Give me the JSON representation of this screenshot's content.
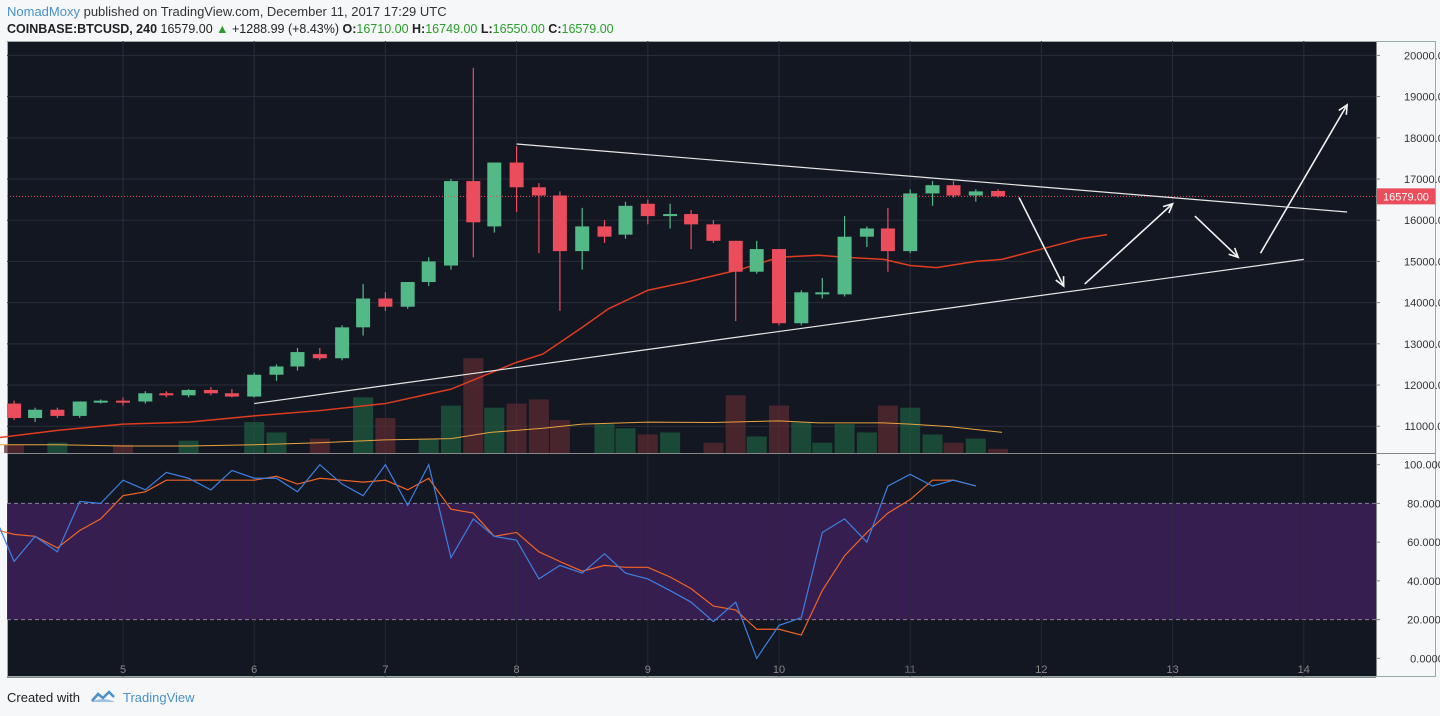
{
  "header": {
    "user": "NomadMoxy",
    "published_text": "published on TradingView.com, December 11, 2017 17:29 UTC",
    "symbol": "COINBASE:BTCUSD, 240",
    "last": "16579.00",
    "change": "+1288.99 (+8.43%)",
    "open_label": "O:",
    "open": "16710.00",
    "high_label": "H:",
    "high": "16749.00",
    "low_label": "L:",
    "low": "16550.00",
    "close_label": "C:",
    "close": "16579.00"
  },
  "footer": {
    "created_with": "Created with",
    "brand": "TradingView"
  },
  "colors": {
    "bg": "#131722",
    "up": "#53b987",
    "down": "#eb4d5c",
    "ema": "#e03c1e",
    "vol_ma": "#e8a33d",
    "k": "#3d7fe0",
    "d": "#f26522",
    "band": "#3b1f57",
    "price_line": "#eb4d5c"
  },
  "chart_data": [
    {
      "type": "candlestick",
      "x_label_days": [
        "5",
        "6",
        "7",
        "8",
        "9",
        "10",
        "11",
        "12",
        "13",
        "14"
      ],
      "x_range": [
        4.1,
        14.5
      ],
      "y_ticks": [
        "20000.00",
        "19000.00",
        "18000.00",
        "17000.00",
        "16000.00",
        "15000.00",
        "14000.00",
        "13000.00",
        "12000.00",
        "11000.00"
      ],
      "ylim": [
        10350,
        20350
      ],
      "last_price_label": "16579.00",
      "candles": [
        {
          "t": 4.0,
          "o": 11550,
          "h": 11650,
          "l": 11350,
          "c": 11400
        },
        {
          "t": 4.17,
          "o": 11550,
          "h": 11620,
          "l": 11150,
          "c": 11200
        },
        {
          "t": 4.33,
          "o": 11200,
          "h": 11450,
          "l": 11100,
          "c": 11400
        },
        {
          "t": 4.5,
          "o": 11400,
          "h": 11450,
          "l": 11200,
          "c": 11250
        },
        {
          "t": 4.67,
          "o": 11250,
          "h": 11600,
          "l": 11200,
          "c": 11600
        },
        {
          "t": 4.83,
          "o": 11600,
          "h": 11650,
          "l": 11550,
          "c": 11620
        },
        {
          "t": 5.0,
          "o": 11620,
          "h": 11700,
          "l": 11500,
          "c": 11600
        },
        {
          "t": 5.17,
          "o": 11600,
          "h": 11850,
          "l": 11550,
          "c": 11800
        },
        {
          "t": 5.33,
          "o": 11800,
          "h": 11850,
          "l": 11700,
          "c": 11750
        },
        {
          "t": 5.5,
          "o": 11750,
          "h": 11900,
          "l": 11700,
          "c": 11880
        },
        {
          "t": 5.67,
          "o": 11880,
          "h": 11950,
          "l": 11750,
          "c": 11800
        },
        {
          "t": 5.83,
          "o": 11800,
          "h": 11900,
          "l": 11700,
          "c": 11720
        },
        {
          "t": 6.0,
          "o": 11720,
          "h": 12300,
          "l": 11700,
          "c": 12250
        },
        {
          "t": 6.17,
          "o": 12250,
          "h": 12500,
          "l": 12100,
          "c": 12450
        },
        {
          "t": 6.33,
          "o": 12450,
          "h": 12900,
          "l": 12350,
          "c": 12800
        },
        {
          "t": 6.5,
          "o": 12750,
          "h": 12900,
          "l": 12600,
          "c": 12650
        },
        {
          "t": 6.67,
          "o": 12650,
          "h": 13450,
          "l": 12600,
          "c": 13400
        },
        {
          "t": 6.83,
          "o": 13400,
          "h": 14450,
          "l": 13200,
          "c": 14100
        },
        {
          "t": 7.0,
          "o": 14100,
          "h": 14250,
          "l": 13800,
          "c": 13900
        },
        {
          "t": 7.17,
          "o": 13900,
          "h": 14500,
          "l": 13850,
          "c": 14500
        },
        {
          "t": 7.33,
          "o": 14500,
          "h": 15100,
          "l": 14400,
          "c": 15000
        },
        {
          "t": 7.5,
          "o": 14900,
          "h": 17000,
          "l": 14800,
          "c": 16950
        },
        {
          "t": 7.67,
          "o": 16950,
          "h": 19700,
          "l": 15100,
          "c": 15950
        },
        {
          "t": 7.83,
          "o": 15850,
          "h": 17400,
          "l": 15700,
          "c": 17400
        },
        {
          "t": 8.0,
          "o": 17400,
          "h": 17800,
          "l": 16200,
          "c": 16800
        },
        {
          "t": 8.17,
          "o": 16800,
          "h": 16900,
          "l": 15200,
          "c": 16600
        },
        {
          "t": 8.33,
          "o": 16600,
          "h": 16700,
          "l": 13800,
          "c": 15250
        },
        {
          "t": 8.5,
          "o": 15250,
          "h": 16300,
          "l": 14800,
          "c": 15850
        },
        {
          "t": 8.67,
          "o": 15850,
          "h": 16000,
          "l": 15450,
          "c": 15600
        },
        {
          "t": 8.83,
          "o": 15650,
          "h": 16450,
          "l": 15550,
          "c": 16350
        },
        {
          "t": 9.0,
          "o": 16400,
          "h": 16500,
          "l": 15900,
          "c": 16100
        },
        {
          "t": 9.17,
          "o": 16100,
          "h": 16400,
          "l": 15800,
          "c": 16150
        },
        {
          "t": 9.33,
          "o": 16150,
          "h": 16250,
          "l": 15300,
          "c": 15900
        },
        {
          "t": 9.5,
          "o": 15900,
          "h": 16000,
          "l": 15450,
          "c": 15500
        },
        {
          "t": 9.67,
          "o": 15500,
          "h": 15500,
          "l": 13550,
          "c": 14750
        },
        {
          "t": 9.83,
          "o": 14750,
          "h": 15500,
          "l": 14700,
          "c": 15300
        },
        {
          "t": 10.0,
          "o": 15300,
          "h": 15300,
          "l": 13450,
          "c": 13500
        },
        {
          "t": 10.17,
          "o": 13500,
          "h": 14300,
          "l": 13450,
          "c": 14250
        },
        {
          "t": 10.33,
          "o": 14200,
          "h": 14600,
          "l": 14100,
          "c": 14250
        },
        {
          "t": 10.5,
          "o": 14200,
          "h": 16100,
          "l": 14150,
          "c": 15600
        },
        {
          "t": 10.67,
          "o": 15600,
          "h": 15850,
          "l": 15350,
          "c": 15800
        },
        {
          "t": 10.83,
          "o": 15800,
          "h": 16300,
          "l": 14750,
          "c": 15250
        },
        {
          "t": 11.0,
          "o": 15250,
          "h": 16750,
          "l": 15200,
          "c": 16650
        },
        {
          "t": 11.17,
          "o": 16650,
          "h": 16950,
          "l": 16350,
          "c": 16850
        },
        {
          "t": 11.33,
          "o": 16850,
          "h": 16950,
          "l": 16550,
          "c": 16600
        },
        {
          "t": 11.5,
          "o": 16600,
          "h": 16750,
          "l": 16450,
          "c": 16700
        },
        {
          "t": 11.67,
          "o": 16710,
          "h": 16749,
          "l": 16550,
          "c": 16579
        }
      ],
      "ema": [
        [
          4.0,
          10700
        ],
        [
          4.5,
          10900
        ],
        [
          5.0,
          11050
        ],
        [
          5.5,
          11100
        ],
        [
          6.0,
          11250
        ],
        [
          6.5,
          11380
        ],
        [
          7.0,
          11550
        ],
        [
          7.5,
          11900
        ],
        [
          8.0,
          12550
        ],
        [
          8.2,
          12750
        ],
        [
          8.5,
          13400
        ],
        [
          8.7,
          13850
        ],
        [
          9.0,
          14300
        ],
        [
          9.3,
          14500
        ],
        [
          9.7,
          14800
        ],
        [
          10.0,
          15100
        ],
        [
          10.3,
          15150
        ],
        [
          10.5,
          15100
        ],
        [
          10.8,
          15050
        ],
        [
          11.0,
          14900
        ],
        [
          11.2,
          14850
        ],
        [
          11.5,
          15000
        ],
        [
          11.7,
          15050
        ],
        [
          12.0,
          15300
        ],
        [
          12.3,
          15550
        ],
        [
          12.5,
          15650
        ]
      ],
      "vol_ma": [
        [
          4.0,
          10550
        ],
        [
          4.5,
          10550
        ],
        [
          5.0,
          10520
        ],
        [
          5.5,
          10520
        ],
        [
          6.0,
          10550
        ],
        [
          6.5,
          10600
        ],
        [
          7.0,
          10670
        ],
        [
          7.5,
          10700
        ],
        [
          7.8,
          10850
        ],
        [
          8.2,
          10950
        ],
        [
          8.5,
          11050
        ],
        [
          9.0,
          11100
        ],
        [
          9.5,
          11090
        ],
        [
          10.0,
          11130
        ],
        [
          10.3,
          11080
        ],
        [
          10.8,
          11080
        ],
        [
          11.0,
          11050
        ],
        [
          11.3,
          10990
        ],
        [
          11.7,
          10850
        ]
      ],
      "volume_bars": [
        {
          "t": 4.17,
          "v": 10550,
          "up": false
        },
        {
          "t": 4.5,
          "v": 10600,
          "up": true
        },
        {
          "t": 5.0,
          "v": 10550,
          "up": false
        },
        {
          "t": 5.5,
          "v": 10650,
          "up": true
        },
        {
          "t": 6.0,
          "v": 11100,
          "up": true
        },
        {
          "t": 6.17,
          "v": 10850,
          "up": true
        },
        {
          "t": 6.5,
          "v": 10700,
          "up": false
        },
        {
          "t": 6.83,
          "v": 11700,
          "up": true
        },
        {
          "t": 7.0,
          "v": 11200,
          "up": false
        },
        {
          "t": 7.33,
          "v": 10700,
          "up": true
        },
        {
          "t": 7.5,
          "v": 11500,
          "up": true
        },
        {
          "t": 7.67,
          "v": 12650,
          "up": false
        },
        {
          "t": 7.83,
          "v": 11450,
          "up": true
        },
        {
          "t": 8.0,
          "v": 11550,
          "up": false
        },
        {
          "t": 8.17,
          "v": 11650,
          "up": false
        },
        {
          "t": 8.33,
          "v": 11150,
          "up": false
        },
        {
          "t": 8.67,
          "v": 11050,
          "up": true
        },
        {
          "t": 8.83,
          "v": 10950,
          "up": true
        },
        {
          "t": 9.0,
          "v": 10800,
          "up": false
        },
        {
          "t": 9.17,
          "v": 10850,
          "up": true
        },
        {
          "t": 9.5,
          "v": 10600,
          "up": false
        },
        {
          "t": 9.67,
          "v": 11750,
          "up": false
        },
        {
          "t": 9.83,
          "v": 10750,
          "up": true
        },
        {
          "t": 10.0,
          "v": 11500,
          "up": false
        },
        {
          "t": 10.17,
          "v": 11100,
          "up": true
        },
        {
          "t": 10.33,
          "v": 10600,
          "up": true
        },
        {
          "t": 10.5,
          "v": 11050,
          "up": true
        },
        {
          "t": 10.67,
          "v": 10850,
          "up": true
        },
        {
          "t": 10.83,
          "v": 11500,
          "up": false
        },
        {
          "t": 11.0,
          "v": 11450,
          "up": true
        },
        {
          "t": 11.17,
          "v": 10800,
          "up": true
        },
        {
          "t": 11.33,
          "v": 10600,
          "up": false
        },
        {
          "t": 11.5,
          "v": 10700,
          "up": true
        },
        {
          "t": 11.67,
          "v": 10450,
          "up": false
        }
      ]
    },
    {
      "type": "line",
      "name": "stochastic-rsi",
      "y_ticks": [
        "100.0000",
        "80.0000",
        "60.0000",
        "40.0000",
        "20.0000",
        "0.0000"
      ],
      "ylim": [
        -5,
        105
      ],
      "band": [
        20,
        80
      ],
      "k": [
        [
          4.0,
          77
        ],
        [
          4.17,
          50
        ],
        [
          4.33,
          63
        ],
        [
          4.5,
          55
        ],
        [
          4.67,
          81
        ],
        [
          4.83,
          80
        ],
        [
          5.0,
          92
        ],
        [
          5.17,
          87
        ],
        [
          5.33,
          96
        ],
        [
          5.5,
          93
        ],
        [
          5.67,
          87
        ],
        [
          5.83,
          97
        ],
        [
          6.0,
          93
        ],
        [
          6.17,
          93
        ],
        [
          6.33,
          86
        ],
        [
          6.5,
          100
        ],
        [
          6.67,
          90
        ],
        [
          6.83,
          84
        ],
        [
          7.0,
          100
        ],
        [
          7.17,
          79
        ],
        [
          7.33,
          100
        ],
        [
          7.5,
          52
        ],
        [
          7.67,
          72
        ],
        [
          7.83,
          63
        ],
        [
          8.0,
          61
        ],
        [
          8.17,
          41
        ],
        [
          8.33,
          48
        ],
        [
          8.5,
          44
        ],
        [
          8.67,
          54
        ],
        [
          8.83,
          44
        ],
        [
          9.0,
          41
        ],
        [
          9.17,
          35
        ],
        [
          9.33,
          29
        ],
        [
          9.5,
          19
        ],
        [
          9.67,
          29
        ],
        [
          9.83,
          0
        ],
        [
          10.0,
          17
        ],
        [
          10.17,
          21
        ],
        [
          10.33,
          65
        ],
        [
          10.5,
          72
        ],
        [
          10.67,
          60
        ],
        [
          10.83,
          89
        ],
        [
          11.0,
          95
        ],
        [
          11.17,
          89
        ],
        [
          11.33,
          92
        ],
        [
          11.5,
          89
        ]
      ],
      "d": [
        [
          4.0,
          67
        ],
        [
          4.17,
          64
        ],
        [
          4.33,
          63
        ],
        [
          4.5,
          57
        ],
        [
          4.67,
          66
        ],
        [
          4.83,
          72
        ],
        [
          5.0,
          84
        ],
        [
          5.17,
          86
        ],
        [
          5.33,
          92
        ],
        [
          5.5,
          92
        ],
        [
          5.67,
          92
        ],
        [
          5.83,
          92
        ],
        [
          6.0,
          92
        ],
        [
          6.17,
          94
        ],
        [
          6.33,
          90
        ],
        [
          6.5,
          93
        ],
        [
          6.67,
          92
        ],
        [
          6.83,
          91
        ],
        [
          7.0,
          92
        ],
        [
          7.17,
          87
        ],
        [
          7.33,
          93
        ],
        [
          7.5,
          77
        ],
        [
          7.67,
          75
        ],
        [
          7.83,
          63
        ],
        [
          8.0,
          65
        ],
        [
          8.17,
          55
        ],
        [
          8.33,
          50
        ],
        [
          8.5,
          45
        ],
        [
          8.67,
          48
        ],
        [
          8.83,
          47
        ],
        [
          9.0,
          47
        ],
        [
          9.17,
          42
        ],
        [
          9.33,
          36
        ],
        [
          9.5,
          27
        ],
        [
          9.67,
          25
        ],
        [
          9.83,
          15
        ],
        [
          10.0,
          15
        ],
        [
          10.17,
          12
        ],
        [
          10.33,
          35
        ],
        [
          10.5,
          53
        ],
        [
          10.67,
          65
        ],
        [
          10.83,
          75
        ],
        [
          11.0,
          82
        ],
        [
          11.17,
          92
        ],
        [
          11.33,
          92
        ],
        [
          11.5,
          89
        ]
      ]
    }
  ],
  "annotations": {
    "trendlines": [
      [
        [
          6.0,
          11550
        ],
        [
          14.0,
          15050
        ]
      ],
      [
        [
          8.0,
          17850
        ],
        [
          14.33,
          16200
        ]
      ]
    ],
    "arrows": [
      [
        [
          11.83,
          16550
        ],
        [
          12.17,
          14400
        ]
      ],
      [
        [
          12.33,
          14450
        ],
        [
          13.0,
          16400
        ]
      ],
      [
        [
          13.17,
          16100
        ],
        [
          13.5,
          15100
        ]
      ],
      [
        [
          13.67,
          15200
        ],
        [
          14.33,
          18800
        ]
      ]
    ]
  }
}
